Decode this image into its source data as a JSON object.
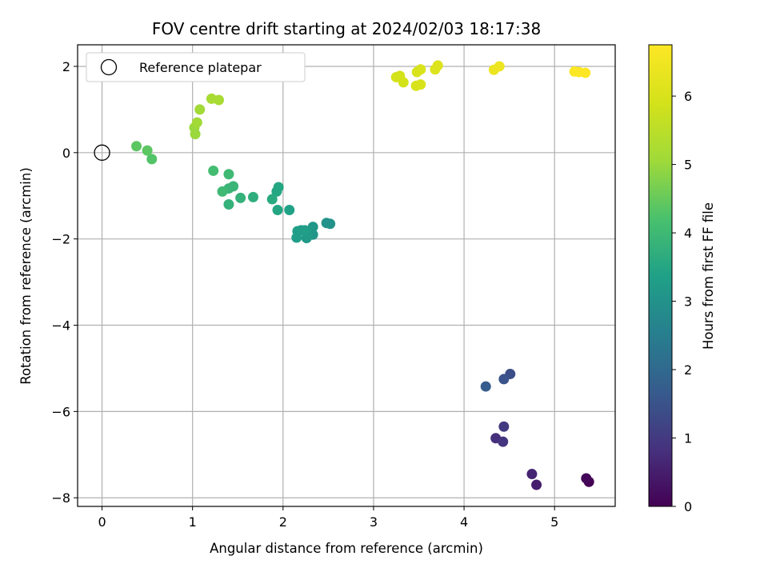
{
  "chart_data": {
    "type": "scatter",
    "title": "FOV centre drift starting at 2024/02/03 18:17:38",
    "xlabel": "Angular distance from reference (arcmin)",
    "ylabel": "Rotation from reference (arcmin)",
    "xlim": [
      -0.27,
      5.67
    ],
    "ylim": [
      -8.2,
      2.5
    ],
    "xticks": [
      0,
      1,
      2,
      3,
      4,
      5
    ],
    "xtick_labels": [
      "0",
      "1",
      "2",
      "3",
      "4",
      "5"
    ],
    "yticks": [
      2,
      0,
      -2,
      -4,
      -6,
      -8
    ],
    "ytick_labels": [
      "2",
      "0",
      "−2",
      "−4",
      "−6",
      "−8"
    ],
    "grid": true,
    "colormap": "viridis",
    "colorbar": {
      "label": "Hours from first FF file",
      "min": 0,
      "max": 6.75,
      "ticks": [
        0,
        1,
        2,
        3,
        4,
        5,
        6
      ],
      "tick_labels": [
        "0",
        "1",
        "2",
        "3",
        "4",
        "5",
        "6"
      ]
    },
    "legend": {
      "position": "top-left",
      "entries": [
        {
          "label": "Reference platepar",
          "marker": "open-circle"
        }
      ]
    },
    "reference_point": {
      "x": 0,
      "y": 0
    },
    "points": [
      {
        "x": 5.38,
        "y": -7.63,
        "h": 0.0
      },
      {
        "x": 5.35,
        "y": -7.55,
        "h": 0.1
      },
      {
        "x": 4.8,
        "y": -7.7,
        "h": 0.5
      },
      {
        "x": 4.75,
        "y": -7.45,
        "h": 0.6
      },
      {
        "x": 4.35,
        "y": -6.62,
        "h": 0.8
      },
      {
        "x": 4.43,
        "y": -6.7,
        "h": 0.9
      },
      {
        "x": 4.44,
        "y": -6.35,
        "h": 1.0
      },
      {
        "x": 4.51,
        "y": -5.13,
        "h": 1.4
      },
      {
        "x": 4.44,
        "y": -5.25,
        "h": 1.5
      },
      {
        "x": 4.24,
        "y": -5.42,
        "h": 1.7
      },
      {
        "x": 2.52,
        "y": -1.65,
        "h": 3.0
      },
      {
        "x": 2.48,
        "y": -1.63,
        "h": 3.0
      },
      {
        "x": 2.33,
        "y": -1.72,
        "h": 3.1
      },
      {
        "x": 2.33,
        "y": -1.9,
        "h": 3.1
      },
      {
        "x": 2.27,
        "y": -1.85,
        "h": 3.2
      },
      {
        "x": 2.2,
        "y": -1.8,
        "h": 3.2
      },
      {
        "x": 2.26,
        "y": -1.98,
        "h": 3.2
      },
      {
        "x": 2.15,
        "y": -1.97,
        "h": 3.3
      },
      {
        "x": 2.16,
        "y": -1.82,
        "h": 3.3
      },
      {
        "x": 2.24,
        "y": -1.8,
        "h": 3.3
      },
      {
        "x": 2.07,
        "y": -1.33,
        "h": 3.4
      },
      {
        "x": 1.94,
        "y": -1.33,
        "h": 3.5
      },
      {
        "x": 1.95,
        "y": -0.8,
        "h": 3.5
      },
      {
        "x": 1.93,
        "y": -0.9,
        "h": 3.5
      },
      {
        "x": 1.88,
        "y": -1.08,
        "h": 3.6
      },
      {
        "x": 1.67,
        "y": -1.03,
        "h": 3.7
      },
      {
        "x": 1.53,
        "y": -1.05,
        "h": 3.8
      },
      {
        "x": 1.4,
        "y": -1.2,
        "h": 3.8
      },
      {
        "x": 1.45,
        "y": -0.78,
        "h": 3.9
      },
      {
        "x": 1.4,
        "y": -0.83,
        "h": 3.9
      },
      {
        "x": 1.33,
        "y": -0.9,
        "h": 4.0
      },
      {
        "x": 1.4,
        "y": -0.5,
        "h": 4.0
      },
      {
        "x": 1.23,
        "y": -0.42,
        "h": 4.1
      },
      {
        "x": 0.55,
        "y": -0.15,
        "h": 4.3
      },
      {
        "x": 0.5,
        "y": 0.05,
        "h": 4.4
      },
      {
        "x": 0.38,
        "y": 0.15,
        "h": 4.4
      },
      {
        "x": 1.03,
        "y": 0.43,
        "h": 5.0
      },
      {
        "x": 1.02,
        "y": 0.58,
        "h": 5.0
      },
      {
        "x": 1.05,
        "y": 0.7,
        "h": 5.1
      },
      {
        "x": 1.08,
        "y": 1.0,
        "h": 5.1
      },
      {
        "x": 1.21,
        "y": 1.25,
        "h": 5.2
      },
      {
        "x": 1.29,
        "y": 1.22,
        "h": 5.2
      },
      {
        "x": 3.25,
        "y": 1.75,
        "h": 5.9
      },
      {
        "x": 3.29,
        "y": 1.78,
        "h": 5.9
      },
      {
        "x": 3.33,
        "y": 1.63,
        "h": 5.9
      },
      {
        "x": 3.47,
        "y": 1.55,
        "h": 6.0
      },
      {
        "x": 3.52,
        "y": 1.58,
        "h": 6.0
      },
      {
        "x": 3.48,
        "y": 1.87,
        "h": 6.0
      },
      {
        "x": 3.52,
        "y": 1.93,
        "h": 6.0
      },
      {
        "x": 3.68,
        "y": 1.93,
        "h": 6.1
      },
      {
        "x": 3.71,
        "y": 2.02,
        "h": 6.1
      },
      {
        "x": 4.33,
        "y": 1.92,
        "h": 6.4
      },
      {
        "x": 4.39,
        "y": 2.0,
        "h": 6.4
      },
      {
        "x": 5.22,
        "y": 1.88,
        "h": 6.7
      },
      {
        "x": 5.27,
        "y": 1.87,
        "h": 6.7
      },
      {
        "x": 5.34,
        "y": 1.85,
        "h": 6.75
      }
    ]
  }
}
